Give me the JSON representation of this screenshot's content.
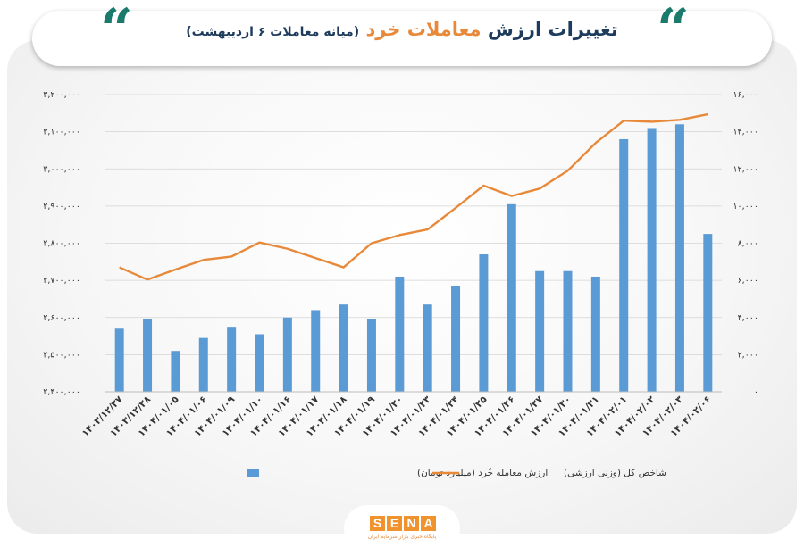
{
  "header": {
    "title_main": "تغییرات ارزش",
    "title_accent": "معاملات خرد",
    "subtitle": "(میانه معاملات ۶ اردیبهشت)",
    "quote_glyph": "“"
  },
  "colors": {
    "bar": "#5b9bd5",
    "line": "#e8893a",
    "title": "#1d3b5c",
    "accent": "#e8893a",
    "quote": "#1a7a6c"
  },
  "chart_data": {
    "type": "bar",
    "categories": [
      "۱۴۰۳/۱۲/۲۷",
      "۱۴۰۳/۱۲/۲۸",
      "۱۴۰۴/۰۱/۰۵",
      "۱۴۰۴/۰۱/۰۶",
      "۱۴۰۴/۰۱/۰۹",
      "۱۴۰۴/۰۱/۱۰",
      "۱۴۰۴/۰۱/۱۶",
      "۱۴۰۴/۰۱/۱۷",
      "۱۴۰۴/۰۱/۱۸",
      "۱۴۰۴/۰۱/۱۹",
      "۱۴۰۴/۰۱/۲۰",
      "۱۴۰۴/۰۱/۲۳",
      "۱۴۰۴/۰۱/۲۴",
      "۱۴۰۴/۰۱/۲۵",
      "۱۴۰۴/۰۱/۲۶",
      "۱۴۰۴/۰۱/۲۷",
      "۱۴۰۴/۰۱/۳۰",
      "۱۴۰۴/۰۱/۳۱",
      "۱۴۰۴/۰۲/۰۱",
      "۱۴۰۴/۰۲/۰۲",
      "۱۴۰۴/۰۲/۰۳",
      "۱۴۰۴/۰۲/۰۶"
    ],
    "series": [
      {
        "name": "ارزش معامله خُرد (میلیارد تومان)",
        "type": "bar",
        "axis": "right",
        "values": [
          3400,
          3900,
          2200,
          2900,
          3500,
          3100,
          4000,
          4400,
          4700,
          3900,
          6200,
          4700,
          5700,
          7400,
          10100,
          6500,
          6500,
          6200,
          13600,
          14200,
          14400,
          8500
        ]
      },
      {
        "name": "شاخص کل (وزنی ارزشی)",
        "type": "line",
        "axis": "left",
        "values": [
          2735000,
          2702000,
          2729000,
          2755000,
          2764000,
          2802000,
          2785000,
          2760000,
          2735000,
          2800000,
          2822000,
          2837000,
          2895000,
          2955000,
          2927000,
          2947000,
          2995000,
          3070000,
          3130000,
          3127000,
          3132000,
          3147000
        ]
      }
    ],
    "y_left": {
      "min": 2400000,
      "max": 3200000,
      "step": 100000,
      "tick_labels": [
        "۲,۴۰۰,۰۰۰",
        "۲,۵۰۰,۰۰۰",
        "۲,۶۰۰,۰۰۰",
        "۲,۷۰۰,۰۰۰",
        "۲,۸۰۰,۰۰۰",
        "۲,۹۰۰,۰۰۰",
        "۳,۰۰۰,۰۰۰",
        "۳,۱۰۰,۰۰۰",
        "۳,۲۰۰,۰۰۰"
      ]
    },
    "y_right": {
      "min": 0,
      "max": 16000,
      "step": 2000,
      "tick_labels": [
        "۰",
        "۲,۰۰۰",
        "۴,۰۰۰",
        "۶,۰۰۰",
        "۸,۰۰۰",
        "۱۰,۰۰۰",
        "۱۲,۰۰۰",
        "۱۴,۰۰۰",
        "۱۶,۰۰۰"
      ]
    },
    "grid": true,
    "legend_position": "bottom"
  },
  "logo": {
    "letters": [
      "S",
      "E",
      "N",
      "A"
    ],
    "tagline": "پایگاه خبری بازار سرمایه ایران"
  }
}
